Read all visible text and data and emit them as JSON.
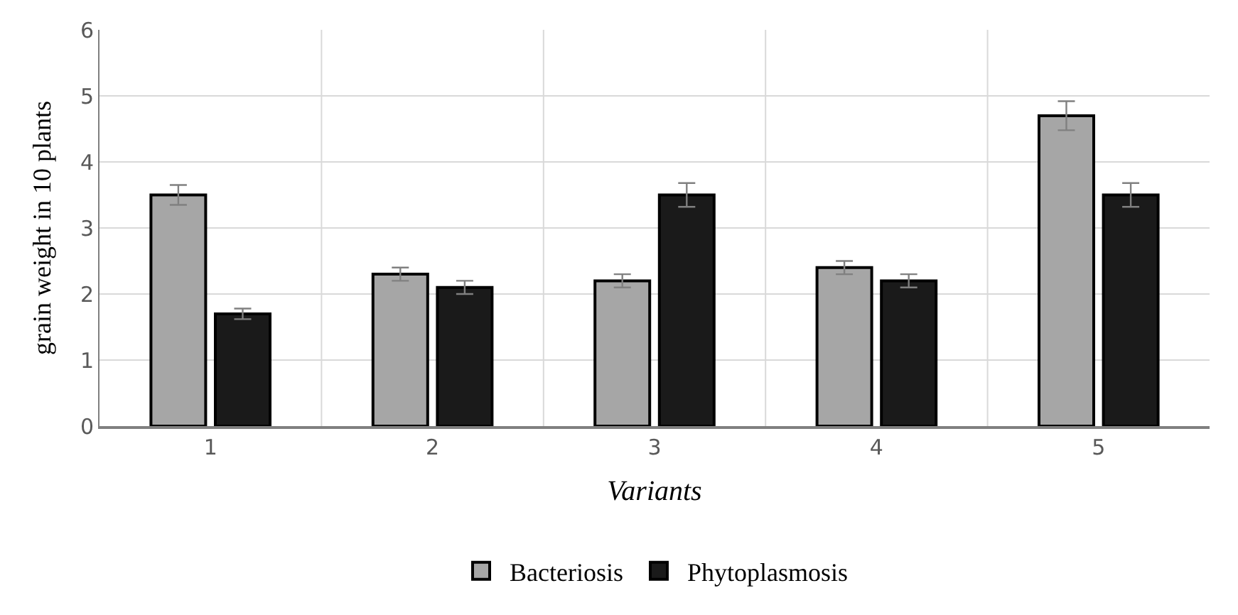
{
  "chart_data": {
    "type": "bar",
    "xlabel": "Variants",
    "ylabel": "grain weight in 10 plants",
    "categories": [
      "1",
      "2",
      "3",
      "4",
      "5"
    ],
    "series": [
      {
        "name": "Bacteriosis",
        "color": "#a6a6a6",
        "values": [
          3.5,
          2.3,
          2.2,
          2.4,
          4.7
        ],
        "errors": [
          0.15,
          0.1,
          0.1,
          0.1,
          0.22
        ]
      },
      {
        "name": "Phytoplasmosis",
        "color": "#1a1a1a",
        "values": [
          1.7,
          2.1,
          3.5,
          2.2,
          3.5
        ],
        "errors": [
          0.08,
          0.1,
          0.18,
          0.1,
          0.18
        ]
      }
    ],
    "ylim": [
      0,
      6
    ],
    "yticks": [
      0,
      1,
      2,
      3,
      4,
      5,
      6
    ],
    "grid": true,
    "legend": "bottom"
  }
}
